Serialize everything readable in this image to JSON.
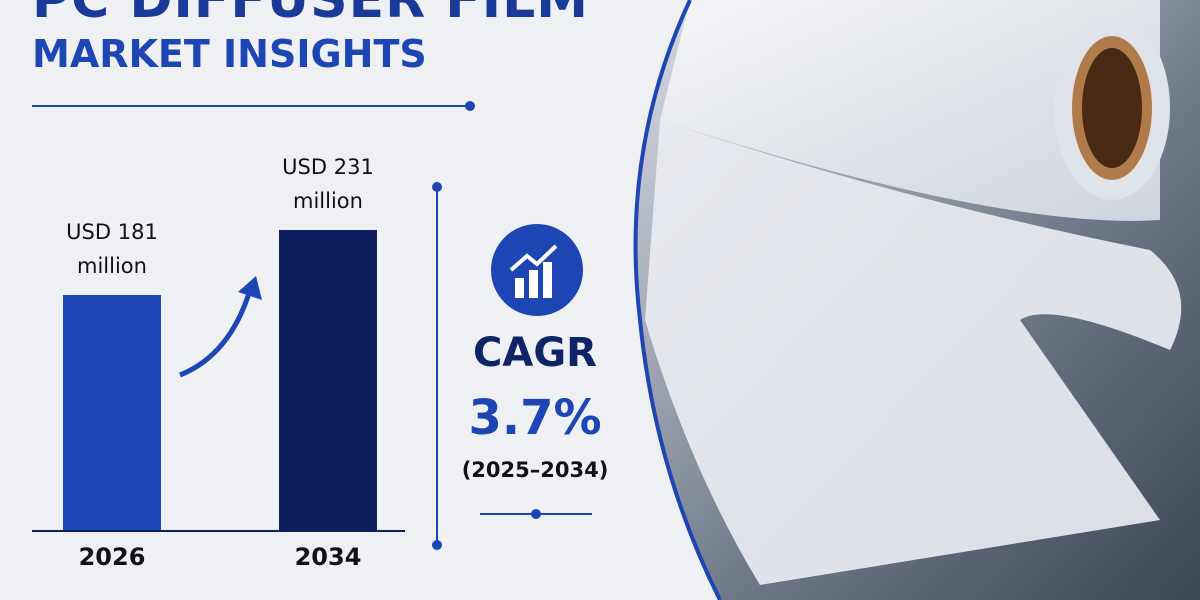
{
  "chart_data": {
    "type": "bar",
    "title": "PC DIFFUSER FILM",
    "subtitle": "MARKET INSIGHTS",
    "categories": [
      "2026",
      "2034"
    ],
    "values": [
      181,
      231
    ],
    "value_labels": [
      "USD 181 million",
      "USD 231 million"
    ],
    "colors": [
      "#1c47b5",
      "#0d1f5c"
    ]
  },
  "cagr": {
    "label": "CAGR",
    "value": "3.7%",
    "period": "(2025–2034)"
  }
}
